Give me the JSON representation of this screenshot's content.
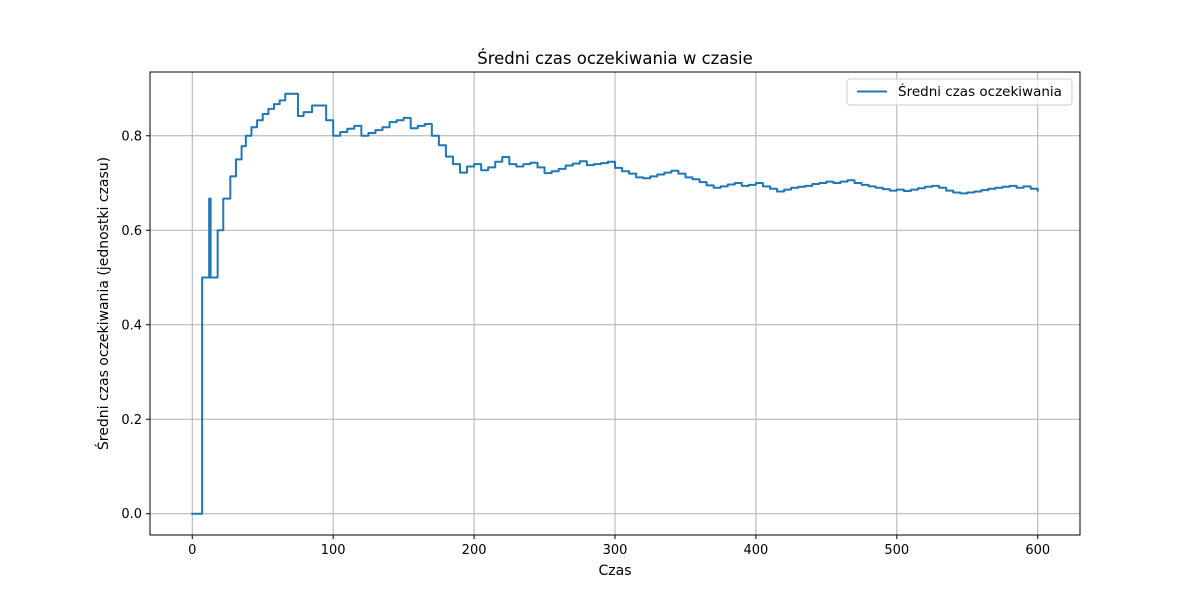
{
  "chart_data": {
    "type": "line",
    "title": "Średni czas oczekiwania w czasie",
    "xlabel": "Czas",
    "ylabel": "Średni czas oczekiwania (jednostki czasu)",
    "xlim": [
      -30,
      630
    ],
    "ylim": [
      -0.045,
      0.935
    ],
    "xticks": [
      0,
      100,
      200,
      300,
      400,
      500,
      600
    ],
    "yticks": [
      0.0,
      0.2,
      0.4,
      0.6,
      0.8
    ],
    "xtick_labels": [
      "0",
      "100",
      "200",
      "300",
      "400",
      "500",
      "600"
    ],
    "ytick_labels": [
      "0.0",
      "0.2",
      "0.4",
      "0.6",
      "0.8"
    ],
    "grid": true,
    "legend": "upper right",
    "series": [
      {
        "name": "Średni czas oczekiwania",
        "color": "#1f77b4",
        "step": true,
        "x": [
          0,
          7,
          12,
          13,
          14,
          18,
          22,
          27,
          31,
          35,
          38,
          42,
          46,
          50,
          54,
          58,
          62,
          66,
          70,
          75,
          79,
          85,
          95,
          100,
          105,
          110,
          115,
          120,
          125,
          130,
          135,
          140,
          145,
          150,
          155,
          160,
          165,
          170,
          175,
          180,
          185,
          190,
          195,
          200,
          205,
          210,
          215,
          220,
          225,
          230,
          235,
          240,
          245,
          250,
          255,
          260,
          265,
          270,
          275,
          280,
          285,
          290,
          295,
          300,
          305,
          310,
          315,
          320,
          325,
          330,
          335,
          340,
          345,
          350,
          355,
          360,
          365,
          370,
          375,
          380,
          385,
          390,
          395,
          400,
          405,
          410,
          415,
          420,
          425,
          430,
          435,
          440,
          445,
          450,
          455,
          460,
          465,
          470,
          475,
          480,
          485,
          490,
          495,
          500,
          505,
          510,
          515,
          520,
          525,
          530,
          535,
          540,
          545,
          550,
          555,
          560,
          565,
          570,
          575,
          580,
          585,
          590,
          595,
          600
        ],
        "y": [
          0.0,
          0.5,
          0.667,
          0.5,
          0.5,
          0.6,
          0.667,
          0.714,
          0.75,
          0.778,
          0.8,
          0.818,
          0.833,
          0.846,
          0.857,
          0.867,
          0.875,
          0.889,
          0.889,
          0.842,
          0.85,
          0.864,
          0.833,
          0.8,
          0.808,
          0.815,
          0.821,
          0.8,
          0.806,
          0.812,
          0.818,
          0.829,
          0.833,
          0.838,
          0.816,
          0.821,
          0.825,
          0.8,
          0.78,
          0.756,
          0.74,
          0.722,
          0.735,
          0.74,
          0.727,
          0.733,
          0.745,
          0.755,
          0.74,
          0.735,
          0.74,
          0.743,
          0.733,
          0.721,
          0.725,
          0.73,
          0.737,
          0.741,
          0.746,
          0.738,
          0.74,
          0.742,
          0.745,
          0.732,
          0.725,
          0.72,
          0.712,
          0.71,
          0.714,
          0.718,
          0.722,
          0.726,
          0.72,
          0.712,
          0.708,
          0.702,
          0.695,
          0.69,
          0.693,
          0.697,
          0.7,
          0.694,
          0.696,
          0.7,
          0.693,
          0.688,
          0.682,
          0.686,
          0.69,
          0.692,
          0.694,
          0.698,
          0.7,
          0.703,
          0.7,
          0.703,
          0.706,
          0.7,
          0.696,
          0.693,
          0.69,
          0.687,
          0.684,
          0.686,
          0.683,
          0.686,
          0.689,
          0.692,
          0.694,
          0.69,
          0.684,
          0.68,
          0.678,
          0.68,
          0.682,
          0.685,
          0.688,
          0.69,
          0.692,
          0.694,
          0.69,
          0.693,
          0.688,
          0.684
        ]
      }
    ]
  }
}
